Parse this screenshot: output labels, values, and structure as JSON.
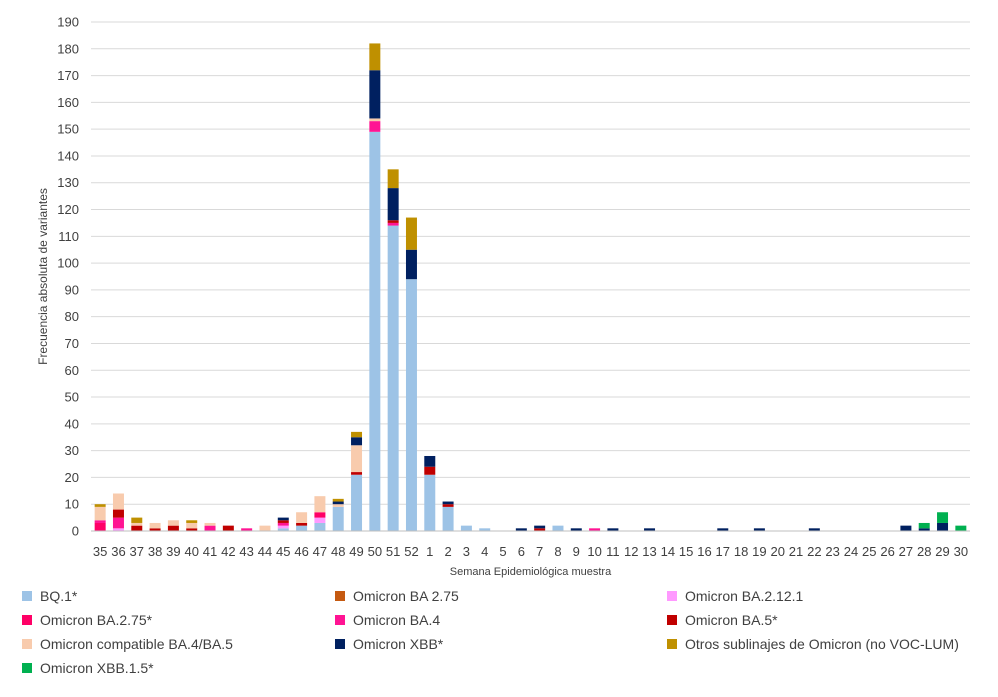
{
  "chart_data": {
    "type": "bar",
    "stacked": true,
    "title": "",
    "xlabel": "Semana Epidemiológica muestra",
    "ylabel": "Frecuencia absoluta de variantes",
    "ylim": [
      0,
      190
    ],
    "yticks": [
      0,
      10,
      20,
      30,
      40,
      50,
      60,
      70,
      80,
      90,
      100,
      110,
      120,
      130,
      140,
      150,
      160,
      170,
      180,
      190
    ],
    "grid": true,
    "legend_position": "bottom",
    "categories": [
      "35",
      "36",
      "37",
      "38",
      "39",
      "40",
      "41",
      "42",
      "43",
      "44",
      "45",
      "46",
      "47",
      "48",
      "49",
      "50",
      "51",
      "52",
      "1",
      "2",
      "3",
      "4",
      "5",
      "6",
      "7",
      "8",
      "9",
      "10",
      "11",
      "12",
      "13",
      "14",
      "15",
      "16",
      "17",
      "18",
      "19",
      "20",
      "21",
      "22",
      "23",
      "24",
      "25",
      "26",
      "27",
      "28",
      "29",
      "30"
    ],
    "series": [
      {
        "name": "BQ.1*",
        "color": "#9DC3E6",
        "values": [
          0,
          0,
          0,
          0,
          0,
          0,
          0,
          0,
          0,
          0,
          1,
          2,
          3,
          9,
          21,
          149,
          114,
          94,
          21,
          9,
          2,
          1,
          0,
          0,
          0,
          2,
          0,
          0,
          0,
          0,
          0,
          0,
          0,
          0,
          0,
          0,
          0,
          0,
          0,
          0,
          0,
          0,
          0,
          0,
          0,
          0,
          0,
          0
        ]
      },
      {
        "name": "Omicron BA 2.75",
        "color": "#C55A11",
        "values": [
          0,
          0,
          0,
          0,
          0,
          0,
          0,
          0,
          0,
          0,
          0,
          0,
          0,
          0,
          0,
          0,
          0,
          0,
          0,
          0,
          0,
          0,
          0,
          0,
          0,
          0,
          0,
          0,
          0,
          0,
          0,
          0,
          0,
          0,
          0,
          0,
          0,
          0,
          0,
          0,
          0,
          0,
          0,
          0,
          0,
          0,
          0,
          0
        ]
      },
      {
        "name": "Omicron BA.2.12.1",
        "color": "#FF99FF",
        "values": [
          0,
          1,
          0,
          0,
          0,
          0,
          0,
          0,
          0,
          0,
          1,
          0,
          2,
          0,
          0,
          0,
          0,
          0,
          0,
          0,
          0,
          0,
          0,
          0,
          0,
          0,
          0,
          0,
          0,
          0,
          0,
          0,
          0,
          0,
          0,
          0,
          0,
          0,
          0,
          0,
          0,
          0,
          0,
          0,
          0,
          0,
          0,
          0
        ]
      },
      {
        "name": "Omicron BA.2.75*",
        "color": "#FF0066",
        "values": [
          3,
          0,
          0,
          0,
          0,
          0,
          0,
          0,
          0,
          0,
          0,
          0,
          2,
          0,
          0,
          0,
          0,
          0,
          0,
          0,
          0,
          0,
          0,
          0,
          0,
          0,
          0,
          0,
          0,
          0,
          0,
          0,
          0,
          0,
          0,
          0,
          0,
          0,
          0,
          0,
          0,
          0,
          0,
          0,
          0,
          0,
          0,
          0
        ]
      },
      {
        "name": "Omicron BA.4",
        "color": "#FF1493",
        "values": [
          1,
          4,
          0,
          0,
          0,
          0,
          2,
          0,
          1,
          0,
          1,
          0,
          0,
          0,
          0,
          4,
          1,
          0,
          0,
          0,
          0,
          0,
          0,
          0,
          0,
          0,
          0,
          1,
          0,
          0,
          0,
          0,
          0,
          0,
          0,
          0,
          0,
          0,
          0,
          0,
          0,
          0,
          0,
          0,
          0,
          0,
          0,
          0
        ]
      },
      {
        "name": "Omicron BA.5*",
        "color": "#C00000",
        "values": [
          0,
          3,
          2,
          1,
          2,
          1,
          0,
          2,
          0,
          0,
          1,
          1,
          0,
          0,
          1,
          0,
          1,
          0,
          3,
          1,
          0,
          0,
          0,
          0,
          1,
          0,
          0,
          0,
          0,
          0,
          0,
          0,
          0,
          0,
          0,
          0,
          0,
          0,
          0,
          0,
          0,
          0,
          0,
          0,
          0,
          0,
          0,
          0
        ]
      },
      {
        "name": "Omicron compatible BA.4/BA.5",
        "color": "#F8CBAD",
        "values": [
          5,
          6,
          1,
          2,
          2,
          2,
          1,
          0,
          0,
          2,
          0,
          4,
          6,
          1,
          10,
          1,
          0,
          0,
          0,
          0,
          0,
          0,
          0,
          0,
          0,
          0,
          0,
          0,
          0,
          0,
          0,
          0,
          0,
          0,
          0,
          0,
          0,
          0,
          0,
          0,
          0,
          0,
          0,
          0,
          0,
          0,
          0,
          0
        ]
      },
      {
        "name": "Omicron XBB*",
        "color": "#002060",
        "values": [
          0,
          0,
          0,
          0,
          0,
          0,
          0,
          0,
          0,
          0,
          1,
          0,
          0,
          1,
          3,
          18,
          12,
          11,
          4,
          1,
          0,
          0,
          0,
          1,
          1,
          0,
          1,
          0,
          1,
          0,
          1,
          0,
          0,
          0,
          1,
          0,
          1,
          0,
          0,
          1,
          0,
          0,
          0,
          0,
          2,
          1,
          3,
          0
        ]
      },
      {
        "name": "Otros sublinajes de Omicron (no VOC-LUM)",
        "color": "#BF9000",
        "values": [
          1,
          0,
          2,
          0,
          0,
          1,
          0,
          0,
          0,
          0,
          0,
          0,
          0,
          1,
          2,
          10,
          7,
          12,
          0,
          0,
          0,
          0,
          0,
          0,
          0,
          0,
          0,
          0,
          0,
          0,
          0,
          0,
          0,
          0,
          0,
          0,
          0,
          0,
          0,
          0,
          0,
          0,
          0,
          0,
          0,
          0,
          0,
          0
        ]
      },
      {
        "name": "Omicron XBB.1.5*",
        "color": "#00B050",
        "values": [
          0,
          0,
          0,
          0,
          0,
          0,
          0,
          0,
          0,
          0,
          0,
          0,
          0,
          0,
          0,
          0,
          0,
          0,
          0,
          0,
          0,
          0,
          0,
          0,
          0,
          0,
          0,
          0,
          0,
          0,
          0,
          0,
          0,
          0,
          0,
          0,
          0,
          0,
          0,
          0,
          0,
          0,
          0,
          0,
          0,
          2,
          4,
          2
        ]
      }
    ]
  }
}
